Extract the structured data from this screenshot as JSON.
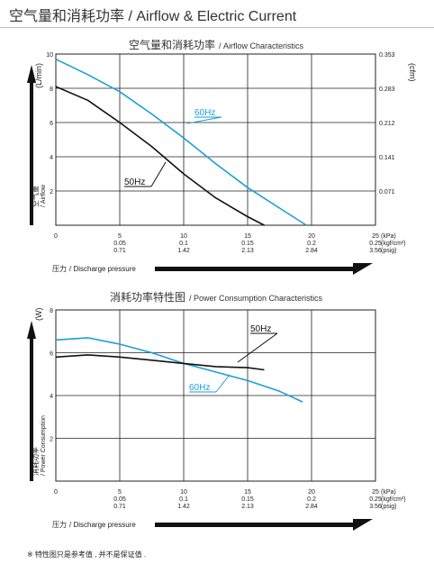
{
  "page": {
    "title": "空气量和消耗功率 / Airflow & Electric Current",
    "footnote": "※ 特性图只是参考值 , 并不是保证值 ."
  },
  "chart_data": [
    {
      "type": "line",
      "title": "空气量和消耗功率",
      "title_en": "/ Airflow Characteristics",
      "ylabel_unit": "(L/min)",
      "ylabel_cn": "空气量",
      "ylabel_en": "/ Airflow",
      "y2label_unit": "(cfm)",
      "xlabel_cn": "压力",
      "xlabel_en": "/ Discharge pressure",
      "xlim": [
        0,
        25
      ],
      "ylim": [
        0,
        10
      ],
      "yticks": [
        "2",
        "4",
        "6",
        "8",
        "10"
      ],
      "y2ticks": [
        "0.071",
        "0.141",
        "0.212",
        "0.283",
        "0.353"
      ],
      "xticks_kpa": [
        "0",
        "5",
        "10",
        "15",
        "20",
        "25"
      ],
      "xticks_kgf": [
        "0.05",
        "0.1",
        "0.15",
        "0.2",
        "0.25"
      ],
      "xticks_psig": [
        "0.71",
        "1.42",
        "2.13",
        "2.84",
        "3.56"
      ],
      "xunits": [
        "(kPa)",
        "(kgf/cm²)",
        "(psig)"
      ],
      "grid": true,
      "series": [
        {
          "name": "60Hz",
          "color": "#1a9fd6",
          "x": [
            0,
            2.5,
            5,
            7.5,
            10,
            12.5,
            15,
            17.5,
            19.6
          ],
          "y": [
            9.7,
            8.8,
            7.8,
            6.5,
            5.1,
            3.6,
            2.2,
            1.0,
            0.0
          ]
        },
        {
          "name": "50Hz",
          "color": "#111111",
          "x": [
            0,
            2.5,
            5,
            7.5,
            10,
            12.5,
            15,
            16.3
          ],
          "y": [
            8.1,
            7.3,
            6.0,
            4.6,
            3.0,
            1.6,
            0.5,
            0.0
          ]
        }
      ]
    },
    {
      "type": "line",
      "title": "消耗功率特性图",
      "title_en": "/ Power Consumption Characteristics",
      "ylabel_unit": "(W)",
      "ylabel_cn": "消耗功率",
      "ylabel_en": "/ Power Consumption",
      "xlabel_cn": "压力",
      "xlabel_en": "/ Discharge pressure",
      "xlim": [
        0,
        25
      ],
      "ylim": [
        0,
        8
      ],
      "yticks": [
        "2",
        "4",
        "6",
        "8"
      ],
      "xticks_kpa": [
        "0",
        "5",
        "10",
        "15",
        "20",
        "25"
      ],
      "xticks_kgf": [
        "0.05",
        "0.1",
        "0.15",
        "0.2",
        "0.25"
      ],
      "xticks_psig": [
        "0.71",
        "1.42",
        "2.13",
        "2.84",
        "3.56"
      ],
      "xunits": [
        "(kPa)",
        "(kgf/cm²)",
        "(psig)"
      ],
      "grid": true,
      "series": [
        {
          "name": "60Hz",
          "color": "#1a9fd6",
          "x": [
            0,
            2.5,
            5,
            7.5,
            10,
            12.5,
            15,
            17.5,
            19.3
          ],
          "y": [
            6.6,
            6.7,
            6.4,
            6.0,
            5.5,
            5.1,
            4.7,
            4.2,
            3.7
          ]
        },
        {
          "name": "50Hz",
          "color": "#111111",
          "x": [
            0,
            2.5,
            5,
            7.5,
            10,
            12.5,
            15,
            16.3
          ],
          "y": [
            5.8,
            5.9,
            5.8,
            5.65,
            5.5,
            5.35,
            5.3,
            5.2
          ]
        }
      ]
    }
  ]
}
